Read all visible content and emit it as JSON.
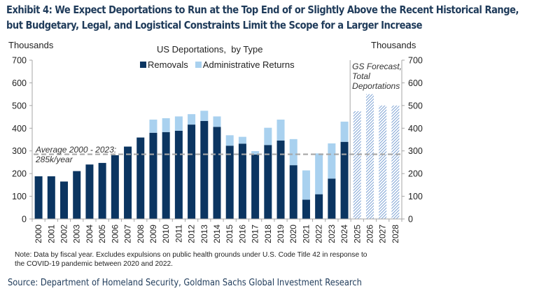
{
  "header": {
    "title_line1": "Exhibit 4: We Expect Deportations to Run at the Top End of or Slightly Above the Recent Historical Range,",
    "title_line2": "but Budgetary, Legal, and Logistical Constraints Limit the Scope for a Larger Increase"
  },
  "chart_data": {
    "type": "bar",
    "stacked": true,
    "title": "US Deportations,  by Type",
    "ylabel_left": "Thousands",
    "ylabel_right": "Thousands",
    "xlabel": "",
    "ylim": [
      0,
      700
    ],
    "yticks": [
      0,
      100,
      200,
      300,
      400,
      500,
      600,
      700
    ],
    "grid": false,
    "legend_position": "top-center",
    "categories": [
      "2000",
      "2001",
      "2002",
      "2003",
      "2004",
      "2005",
      "2006",
      "2007",
      "2008",
      "2009",
      "2010",
      "2011",
      "2012",
      "2013",
      "2014",
      "2015",
      "2016",
      "2017",
      "2018",
      "2019",
      "2020",
      "2021",
      "2022",
      "2023",
      "2024",
      "2025",
      "2026",
      "2027",
      "2028"
    ],
    "series": [
      {
        "name": "Removals",
        "color": "#0b3561",
        "values": [
          188,
          188,
          165,
          211,
          240,
          247,
          281,
          319,
          359,
          380,
          383,
          389,
          416,
          432,
          406,
          323,
          332,
          284,
          326,
          346,
          237,
          85,
          109,
          178,
          340,
          null,
          null,
          null,
          null
        ]
      },
      {
        "name": "Administrative Returns",
        "color": "#a9d1ef",
        "values": [
          0,
          0,
          0,
          0,
          0,
          0,
          0,
          0,
          0,
          58,
          61,
          63,
          46,
          45,
          46,
          46,
          30,
          15,
          76,
          92,
          115,
          129,
          180,
          155,
          89,
          null,
          null,
          null,
          null
        ]
      },
      {
        "name": "GS Forecast, Total Deportations",
        "color": "#7da2d4",
        "pattern": "hatched",
        "values": [
          null,
          null,
          null,
          null,
          null,
          null,
          null,
          null,
          null,
          null,
          null,
          null,
          null,
          null,
          null,
          null,
          null,
          null,
          null,
          null,
          null,
          null,
          null,
          null,
          null,
          475,
          550,
          500,
          500
        ]
      }
    ],
    "reference_line": {
      "label_line1": "Average 2000 - 2023:",
      "label_line2": "285k/year",
      "value": 285,
      "color": "#a6a6a6",
      "style": "dashed"
    },
    "forecast_annotation": {
      "line1": "GS Forecast,",
      "line2": "Total",
      "line3": "Deportations"
    }
  },
  "footer": {
    "note_line1": "Note: Data  by fiscal year. Excludes expulsions on public health grounds under U.S.  Code Title  42 in  response to",
    "note_line2": "the COVID-19  pandemic between 2020 and 2022.",
    "source": "Source: Department of Homeland Security, Goldman Sachs Global Investment Research"
  }
}
